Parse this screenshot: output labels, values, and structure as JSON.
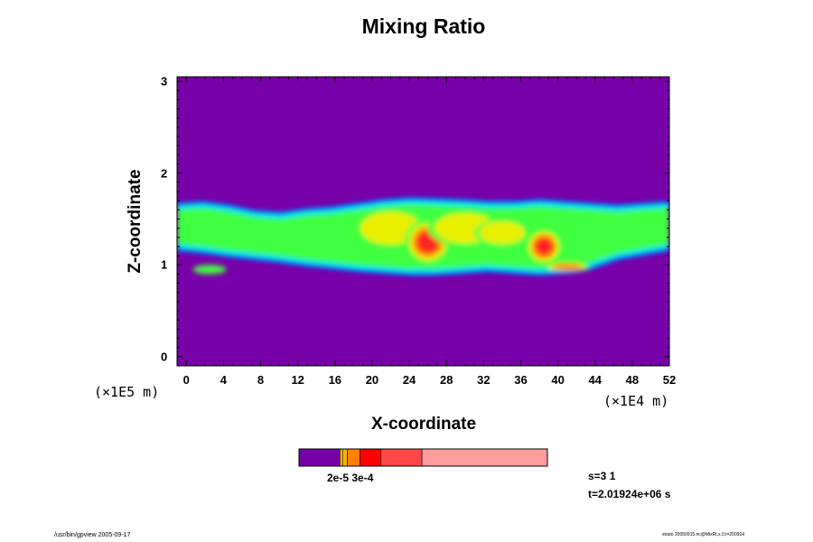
{
  "chart_data": {
    "type": "heatmap",
    "title": "Mixing Ratio",
    "xlabel": "X-coordinate",
    "ylabel": "Z-coordinate",
    "x_unit": "(×1E4 m)",
    "y_unit": "(×1E5 m)",
    "xlim": [
      -1,
      52
    ],
    "ylim": [
      -0.1,
      3.05
    ],
    "x_ticks": [
      0,
      4,
      8,
      12,
      16,
      20,
      24,
      28,
      32,
      36,
      40,
      44,
      48,
      52
    ],
    "y_ticks": [
      0,
      1,
      2,
      3
    ],
    "background_color": "#7800a8",
    "band": {
      "x_start": -1,
      "x_end": 52,
      "bottom": [
        1.15,
        1.12,
        1.08,
        1.05,
        1.02,
        0.98,
        0.95,
        0.92,
        0.9,
        0.88,
        0.88,
        0.9,
        0.92,
        0.9,
        0.88,
        0.9,
        0.95,
        1.05,
        1.1,
        1.15
      ],
      "top": [
        1.68,
        1.7,
        1.66,
        1.6,
        1.58,
        1.62,
        1.64,
        1.68,
        1.72,
        1.74,
        1.73,
        1.72,
        1.7,
        1.7,
        1.72,
        1.7,
        1.68,
        1.66,
        1.68,
        1.7
      ]
    },
    "cores": [
      {
        "x": 2.5,
        "z": 0.95,
        "rx": 1.8,
        "rz": 0.05,
        "level": 3
      },
      {
        "x": 7.0,
        "z": 1.3,
        "rx": 3.0,
        "rz": 0.12,
        "level": 1
      },
      {
        "x": 15.0,
        "z": 1.35,
        "rx": 4.0,
        "rz": 0.18,
        "level": 2
      },
      {
        "x": 22.0,
        "z": 1.4,
        "rx": 4.0,
        "rz": 0.22,
        "level": 4
      },
      {
        "x": 26.0,
        "z": 1.25,
        "rx": 2.5,
        "rz": 0.25,
        "level": 6
      },
      {
        "x": 30.0,
        "z": 1.4,
        "rx": 4.0,
        "rz": 0.2,
        "level": 4
      },
      {
        "x": 34.0,
        "z": 1.35,
        "rx": 3.0,
        "rz": 0.15,
        "level": 4
      },
      {
        "x": 38.5,
        "z": 1.2,
        "rx": 2.0,
        "rz": 0.2,
        "level": 6
      },
      {
        "x": 41.0,
        "z": 0.98,
        "rx": 2.5,
        "rz": 0.05,
        "level": 5
      },
      {
        "x": 44.0,
        "z": 1.3,
        "rx": 3.0,
        "rz": 0.15,
        "level": 2
      },
      {
        "x": 50.0,
        "z": 1.45,
        "rx": 3.0,
        "rz": 0.15,
        "level": 1
      }
    ],
    "colorbar": {
      "label": "2e-5 3e-4",
      "segments": [
        {
          "color": "#7800a8",
          "fraction": 0.165
        },
        {
          "color": "#ffd000",
          "fraction": 0.01
        },
        {
          "color": "#ffb000",
          "fraction": 0.02
        },
        {
          "color": "#ff8000",
          "fraction": 0.05
        },
        {
          "color": "#ff0000",
          "fraction": 0.085
        },
        {
          "color": "#ff4848",
          "fraction": 0.165
        },
        {
          "color": "#ff9c9c",
          "fraction": 0.505
        }
      ]
    },
    "level_colors": [
      "#7800a8",
      "#0050ff",
      "#00e8e0",
      "#40ff40",
      "#e8f000",
      "#ff8000",
      "#ff2020",
      "#ff9c9c"
    ]
  },
  "stamp": {
    "step": "s=3 1",
    "time": "t=2.01924e+06 s"
  },
  "footer": {
    "left": "/usr/bin/gpview 2005-09-17",
    "right": "strato 20050915.nc@MixRt,x,0,t=200924"
  }
}
